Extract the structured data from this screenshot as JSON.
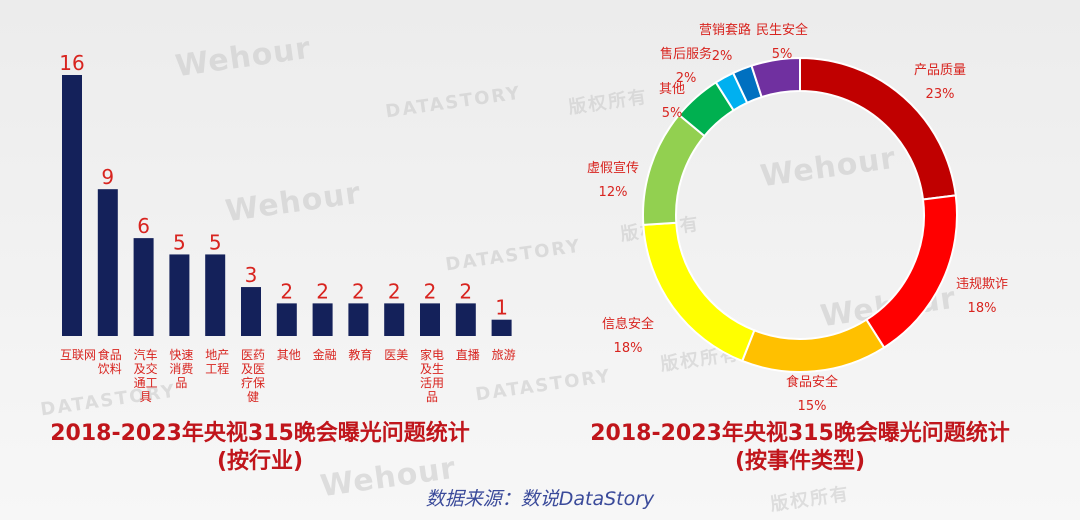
{
  "watermarks": {
    "brand": "Wehour",
    "brand2": "DATASTORY",
    "rights": "版权所有"
  },
  "colors": {
    "bar": "#14215a",
    "bar_label": "#d8241f",
    "title": "#c0151b",
    "source": "#3a4a9a",
    "pie_label": "#d8241f"
  },
  "source_text": "数据来源：数说DataStory",
  "chart_data": [
    {
      "type": "bar",
      "title": "2018-2023年央视315晚会曝光问题统计",
      "subtitle": "(按行业)",
      "categories": [
        "互联网",
        "食品饮料",
        "汽车及交通工具",
        "快速消费品",
        "地产工程",
        "医药及医疗保健",
        "其他",
        "金融",
        "教育",
        "医美",
        "家电及生活用品",
        "直播",
        "旅游"
      ],
      "category_lines": [
        [
          "互联网"
        ],
        [
          "食品",
          "饮料"
        ],
        [
          "汽车",
          "及交",
          "通工",
          "具"
        ],
        [
          "快速",
          "消费",
          "品"
        ],
        [
          "地产",
          "工程"
        ],
        [
          "医药",
          "及医",
          "疗保",
          "健"
        ],
        [
          "其他"
        ],
        [
          "金融"
        ],
        [
          "教育"
        ],
        [
          "医美"
        ],
        [
          "家电",
          "及生",
          "活用",
          "品"
        ],
        [
          "直播"
        ],
        [
          "旅游"
        ]
      ],
      "values": [
        16,
        9,
        6,
        5,
        5,
        3,
        2,
        2,
        2,
        2,
        2,
        2,
        1
      ],
      "ylim": [
        0,
        16
      ]
    },
    {
      "type": "pie",
      "title": "2018-2023年央视315晚会曝光问题统计",
      "subtitle": "(按事件类型)",
      "labels": [
        "产品质量",
        "违规欺诈",
        "食品安全",
        "信息安全",
        "虚假宣传",
        "其他",
        "售后服务",
        "营销套路",
        "民生安全"
      ],
      "values": [
        23,
        18,
        15,
        18,
        12,
        5,
        2,
        2,
        5
      ],
      "value_labels": [
        "23%",
        "18%",
        "15%",
        "18%",
        "12%",
        "5%",
        "2%",
        "2%",
        "5%"
      ],
      "colors": [
        "#c00000",
        "#ff0000",
        "#ffc000",
        "#ffff00",
        "#92d050",
        "#00b050",
        "#00b0f0",
        "#0070c0",
        "#7030a0"
      ]
    }
  ]
}
